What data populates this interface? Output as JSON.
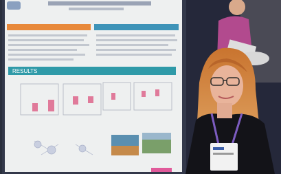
{
  "poster": {
    "results_header": "RESULTS"
  }
}
